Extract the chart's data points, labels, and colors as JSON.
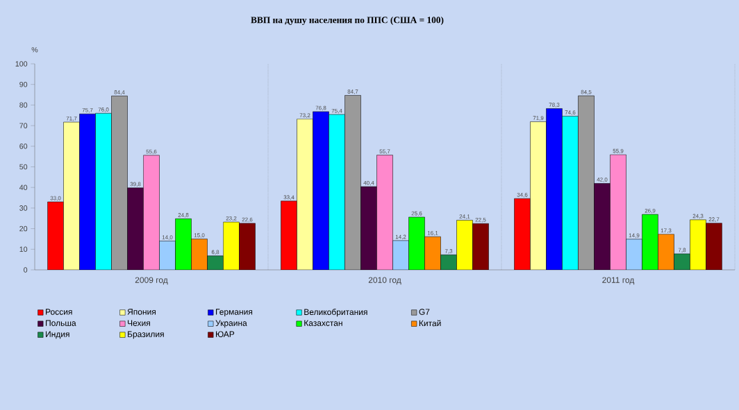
{
  "chart_data": {
    "type": "bar",
    "title": "ВВП на душу населения по ППС (США = 100)",
    "ylabel": "%",
    "categories": [
      "2009 год",
      "2010 год",
      "2011 год"
    ],
    "ylim": [
      0,
      100
    ],
    "yticks": [
      0,
      10,
      20,
      30,
      40,
      50,
      60,
      70,
      80,
      90,
      100
    ],
    "legend": "bottom",
    "series": [
      {
        "name": "Россия",
        "color": "#ff0000",
        "values": [
          33.0,
          33.4,
          34.6
        ],
        "value_labels": [
          "33,0",
          "33,4",
          "34,6"
        ]
      },
      {
        "name": "Япония",
        "color": "#ffff99",
        "values": [
          71.7,
          73.2,
          71.9
        ],
        "value_labels": [
          "71,7",
          "73,2",
          "71,9"
        ]
      },
      {
        "name": "Германия",
        "color": "#0000ff",
        "values": [
          75.7,
          76.8,
          78.3
        ],
        "value_labels": [
          "75,7",
          "76,8",
          "78,3"
        ]
      },
      {
        "name": "Великобритания",
        "color": "#00ffff",
        "values": [
          76.0,
          75.4,
          74.6
        ],
        "value_labels": [
          "76,0",
          "75,4",
          "74,6"
        ]
      },
      {
        "name": "G7",
        "color": "#9a9a9a",
        "values": [
          84.4,
          84.7,
          84.5
        ],
        "value_labels": [
          "84,4",
          "84,7",
          "84,5"
        ]
      },
      {
        "name": "Польша",
        "color": "#4a0040",
        "values": [
          39.8,
          40.4,
          42.0
        ],
        "value_labels": [
          "39,8",
          "40,4",
          "42,0"
        ]
      },
      {
        "name": "Чехия",
        "color": "#ff88cc",
        "values": [
          55.6,
          55.7,
          55.9
        ],
        "value_labels": [
          "55,6",
          "55,7",
          "55,9"
        ]
      },
      {
        "name": "Украина",
        "color": "#99ccff",
        "values": [
          14.0,
          14.2,
          14.9
        ],
        "value_labels": [
          "14,0",
          "14,2",
          "14,9"
        ]
      },
      {
        "name": "Казахстан",
        "color": "#00ff00",
        "values": [
          24.8,
          25.6,
          26.9
        ],
        "value_labels": [
          "24,8",
          "25,6",
          "26,9"
        ]
      },
      {
        "name": "Китай",
        "color": "#ff8800",
        "values": [
          15.0,
          16.1,
          17.3
        ],
        "value_labels": [
          "15,0",
          "16,1",
          "17,3"
        ]
      },
      {
        "name": "Индия",
        "color": "#1a8a4a",
        "values": [
          6.8,
          7.3,
          7.8
        ],
        "value_labels": [
          "6,8",
          "7,3",
          "7,8"
        ]
      },
      {
        "name": "Бразилия",
        "color": "#ffff00",
        "values": [
          23.2,
          24.1,
          24.3
        ],
        "value_labels": [
          "23,2",
          "24,1",
          "24,3"
        ]
      },
      {
        "name": "ЮАР",
        "color": "#800000",
        "values": [
          22.6,
          22.5,
          22.7
        ],
        "value_labels": [
          "22,6",
          "22,5",
          "22,7"
        ]
      }
    ]
  }
}
